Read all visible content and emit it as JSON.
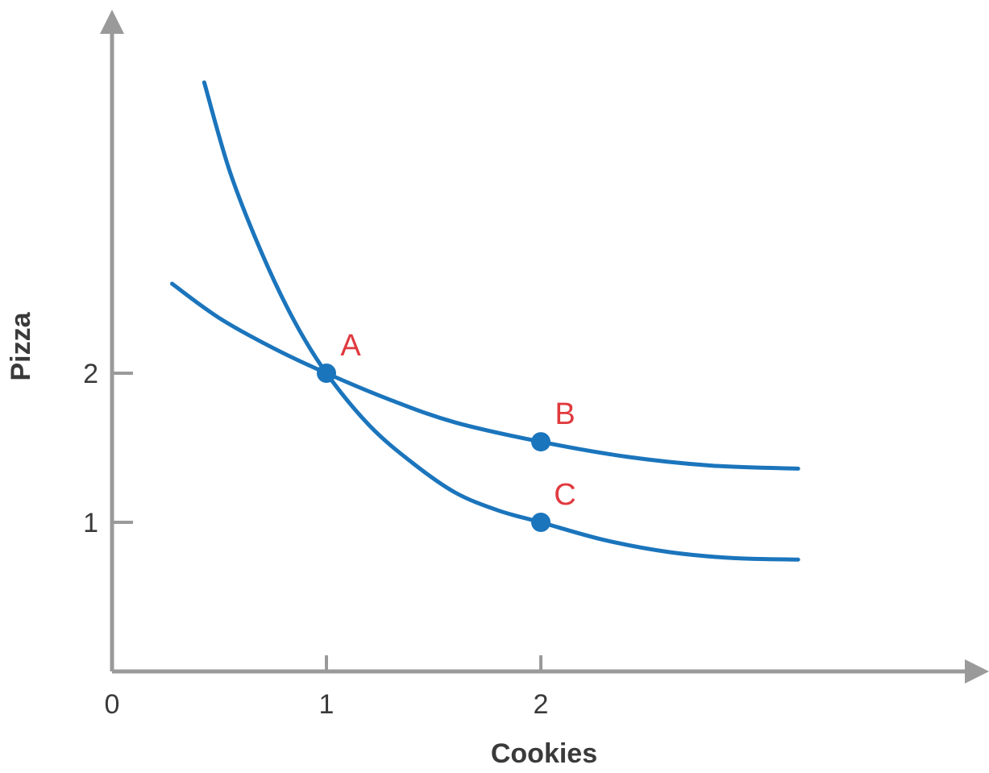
{
  "chart_data": {
    "type": "line",
    "xlabel": "Cookies",
    "ylabel": "Pizza",
    "x_ticks": [
      {
        "value": 0,
        "label": "0"
      },
      {
        "value": 1,
        "label": "1"
      },
      {
        "value": 2,
        "label": "2"
      }
    ],
    "y_ticks": [
      {
        "value": 1,
        "label": "1"
      },
      {
        "value": 2,
        "label": "2"
      }
    ],
    "xlim": [
      0,
      4.0
    ],
    "ylim": [
      0,
      4.4
    ],
    "grid": false,
    "series": [
      {
        "x": [
          0.43,
          0.55,
          0.7,
          0.85,
          1.0,
          1.2,
          1.4,
          1.6,
          1.8,
          2.0,
          2.3,
          2.6,
          2.9,
          3.2
        ],
        "y": [
          3.95,
          3.35,
          2.8,
          2.35,
          2.0,
          1.65,
          1.4,
          1.2,
          1.08,
          1.0,
          0.88,
          0.8,
          0.76,
          0.75
        ]
      },
      {
        "x": [
          0.28,
          0.5,
          0.75,
          1.0,
          1.3,
          1.6,
          2.0,
          2.4,
          2.8,
          3.2
        ],
        "y": [
          2.6,
          2.37,
          2.17,
          2.0,
          1.82,
          1.67,
          1.54,
          1.44,
          1.38,
          1.36
        ]
      }
    ],
    "points": [
      {
        "label": "A",
        "x": 1,
        "y": 2
      },
      {
        "label": "B",
        "x": 2,
        "y": 1.54
      },
      {
        "label": "C",
        "x": 2,
        "y": 1
      }
    ],
    "colors": {
      "curve": "#1b75bc",
      "point": "#1b75bc",
      "point_label": "#e03a3e",
      "axis": "#9a9a9a"
    }
  }
}
